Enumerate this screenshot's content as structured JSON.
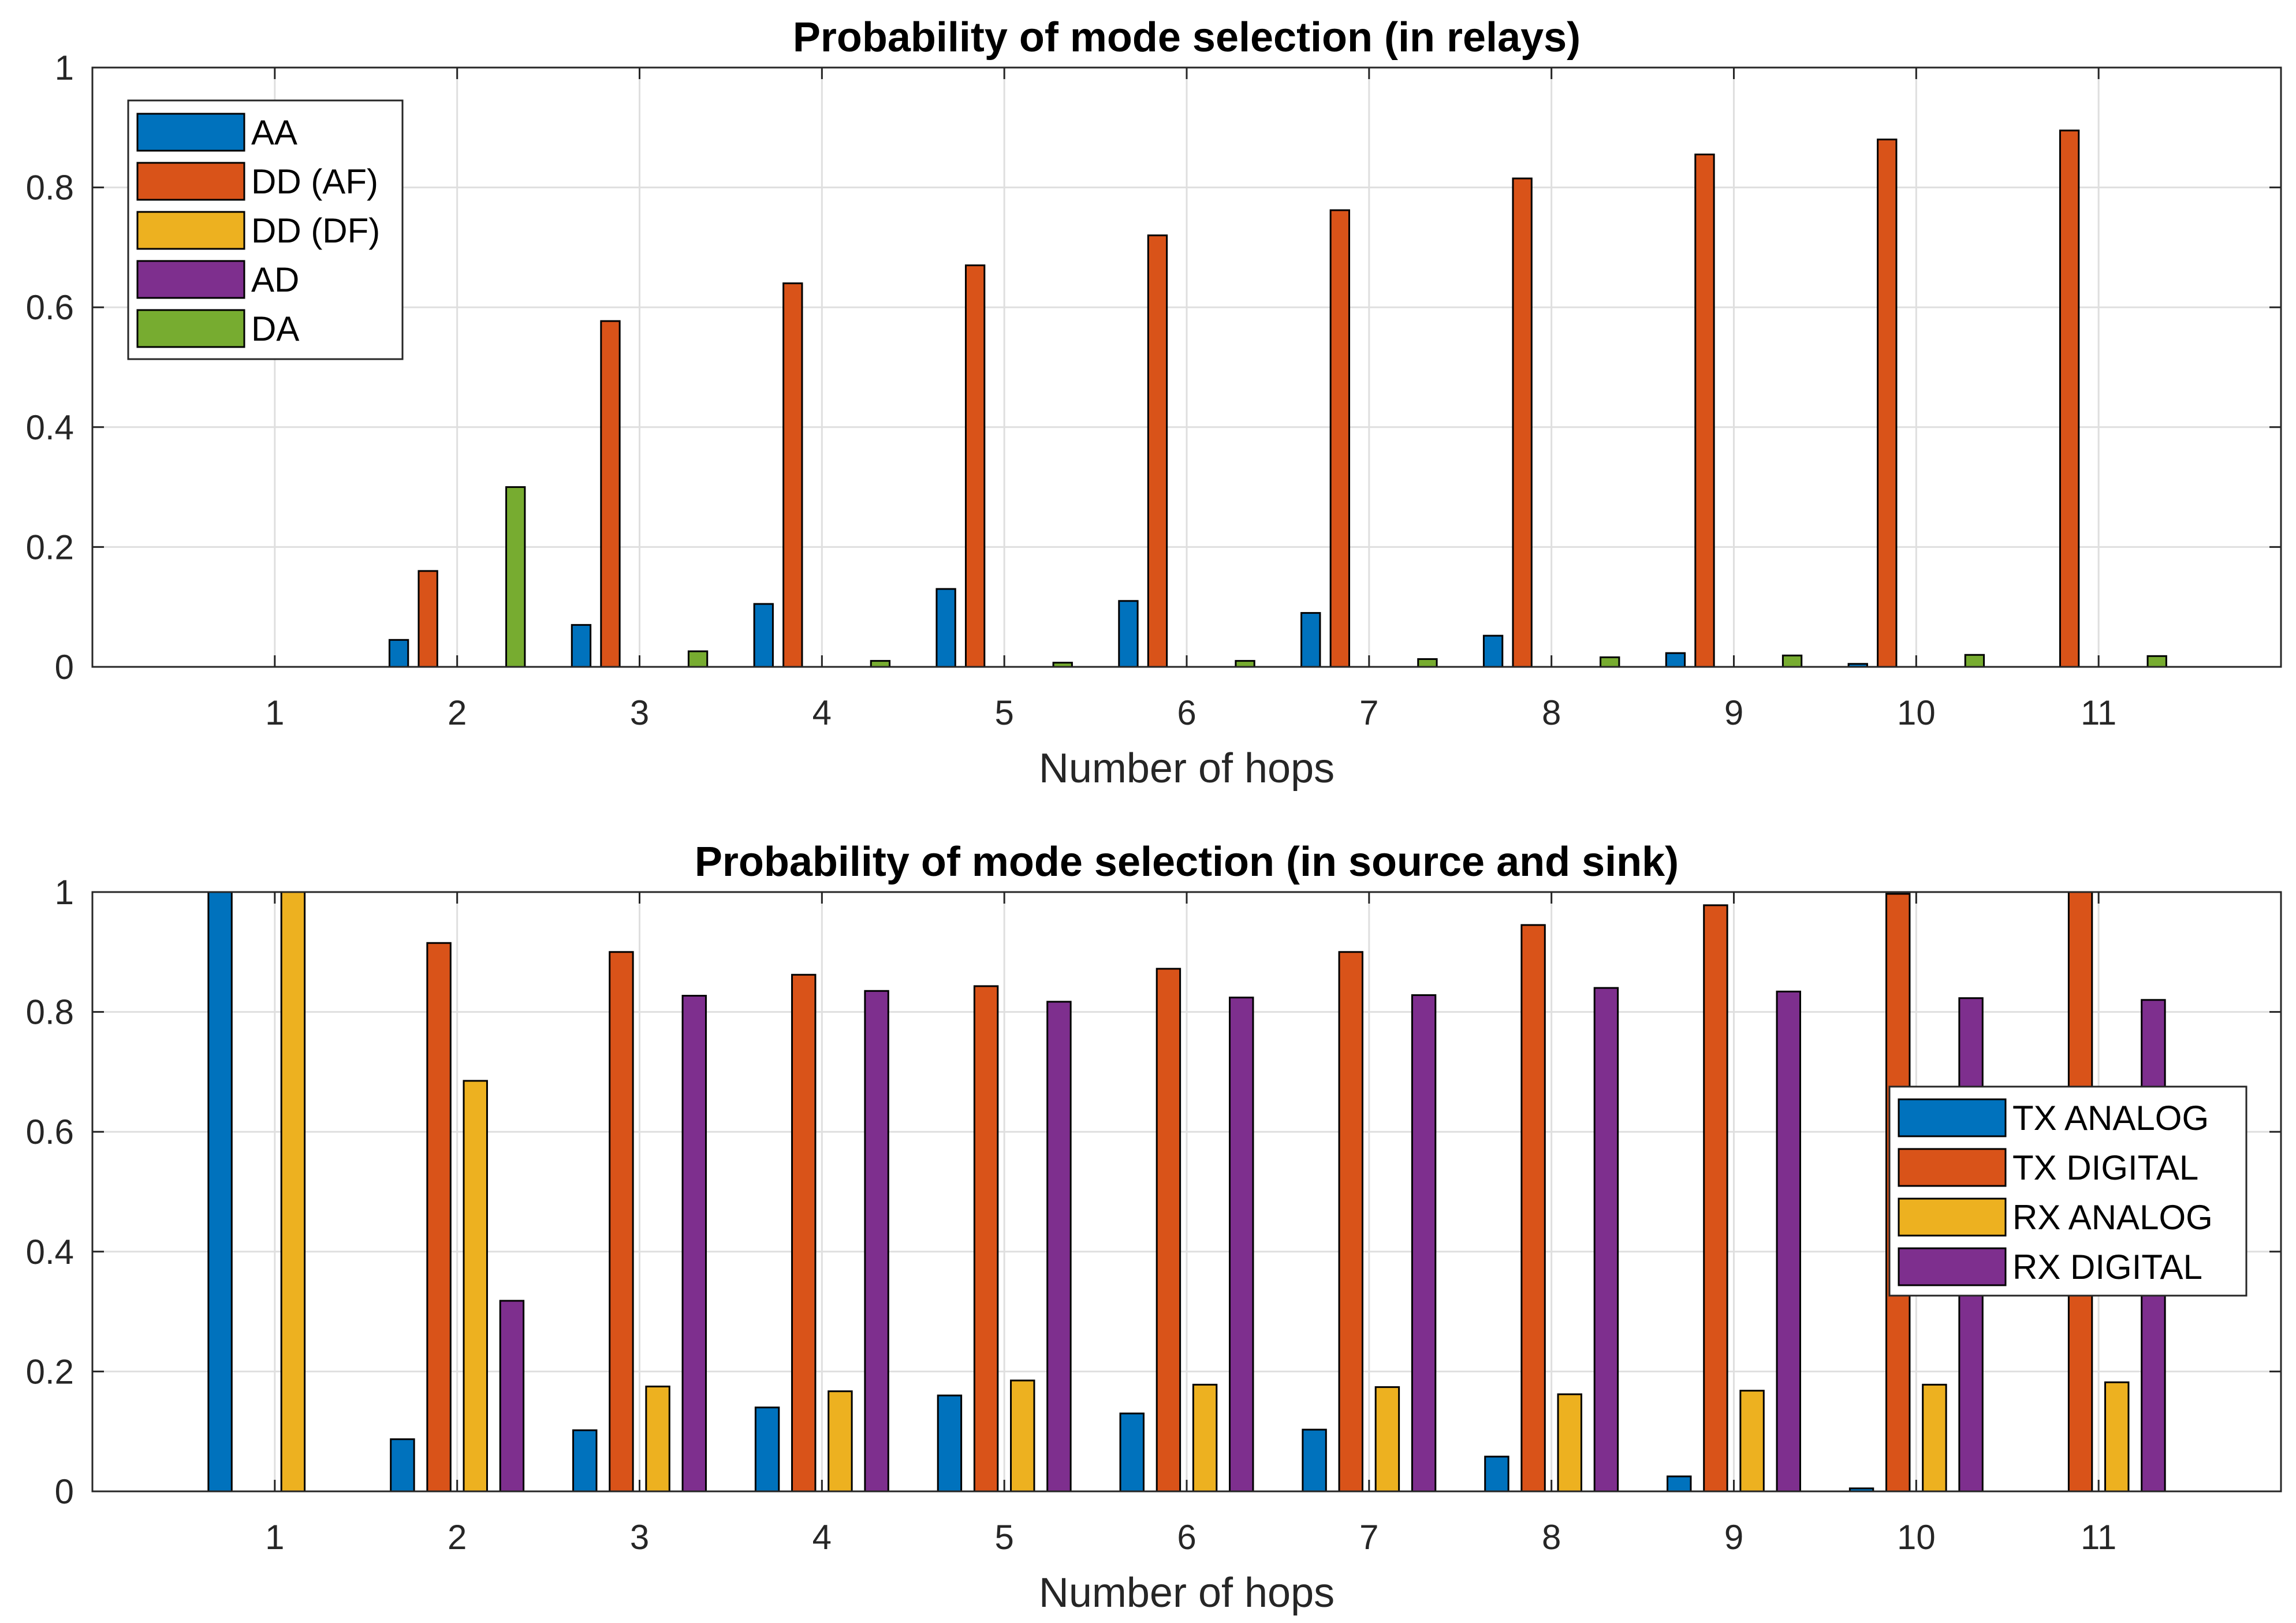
{
  "chart_data": [
    {
      "type": "bar",
      "title": "Probability of mode selection (in relays)",
      "xlabel": "Number of hops",
      "ylabel": "",
      "categories": [
        "1",
        "2",
        "3",
        "4",
        "5",
        "6",
        "7",
        "8",
        "9",
        "10",
        "11"
      ],
      "ylim": [
        0,
        1
      ],
      "yticks": [
        "0",
        "0.2",
        "0.4",
        "0.6",
        "0.8",
        "1"
      ],
      "grid": true,
      "legend_position": "top-left",
      "series": [
        {
          "name": "AA",
          "color": "#0072BD",
          "values": [
            0,
            0.045,
            0.07,
            0.105,
            0.13,
            0.11,
            0.09,
            0.052,
            0.023,
            0.005,
            0
          ]
        },
        {
          "name": "DD (AF)",
          "color": "#D95319",
          "values": [
            0,
            0.16,
            0.577,
            0.64,
            0.67,
            0.72,
            0.762,
            0.815,
            0.855,
            0.88,
            0.895
          ]
        },
        {
          "name": "DD (DF)",
          "color": "#EDB120",
          "values": [
            0,
            0,
            0,
            0,
            0,
            0,
            0,
            0,
            0,
            0,
            0
          ]
        },
        {
          "name": "AD",
          "color": "#7E2F8E",
          "values": [
            0,
            0,
            0,
            0,
            0,
            0,
            0,
            0,
            0,
            0,
            0
          ]
        },
        {
          "name": "DA",
          "color": "#77AC30",
          "values": [
            0,
            0.3,
            0.026,
            0.01,
            0.007,
            0.01,
            0.013,
            0.016,
            0.019,
            0.02,
            0.018
          ]
        }
      ]
    },
    {
      "type": "bar",
      "title": "Probability of mode selection (in source and sink)",
      "xlabel": "Number of hops",
      "ylabel": "",
      "categories": [
        "1",
        "2",
        "3",
        "4",
        "5",
        "6",
        "7",
        "8",
        "9",
        "10",
        "11"
      ],
      "ylim": [
        0,
        1
      ],
      "yticks": [
        "0",
        "0.2",
        "0.4",
        "0.6",
        "0.8",
        "1"
      ],
      "grid": true,
      "legend_position": "right",
      "series": [
        {
          "name": "TX ANALOG",
          "color": "#0072BD",
          "values": [
            1.0,
            0.087,
            0.102,
            0.14,
            0.16,
            0.13,
            0.103,
            0.058,
            0.025,
            0.005,
            0
          ]
        },
        {
          "name": "TX DIGITAL",
          "color": "#D95319",
          "values": [
            0,
            0.915,
            0.9,
            0.862,
            0.843,
            0.872,
            0.9,
            0.945,
            0.978,
            0.997,
            1.0
          ]
        },
        {
          "name": "RX ANALOG",
          "color": "#EDB120",
          "values": [
            1.0,
            0.685,
            0.175,
            0.167,
            0.185,
            0.178,
            0.174,
            0.162,
            0.168,
            0.178,
            0.182
          ]
        },
        {
          "name": "RX DIGITAL",
          "color": "#7E2F8E",
          "values": [
            0,
            0.318,
            0.827,
            0.835,
            0.817,
            0.824,
            0.828,
            0.84,
            0.834,
            0.823,
            0.82
          ]
        }
      ]
    }
  ]
}
